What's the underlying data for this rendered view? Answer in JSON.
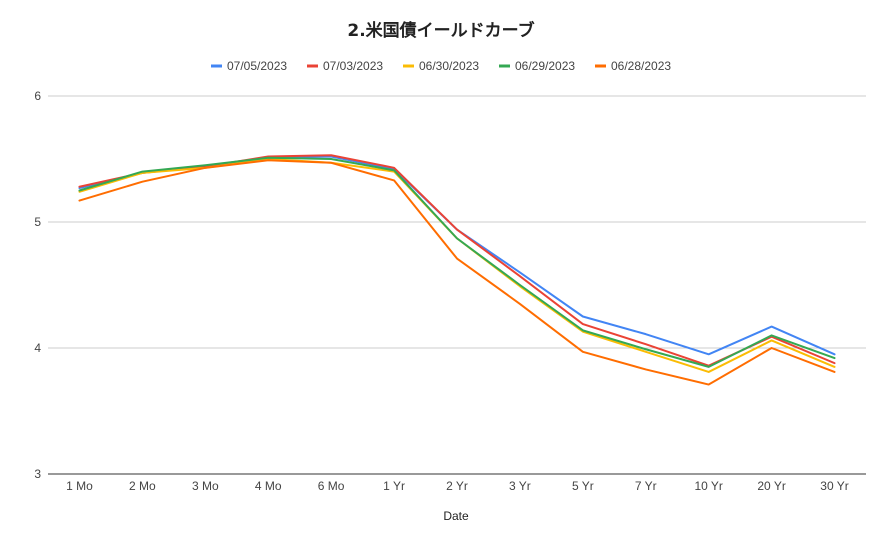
{
  "chart_data": {
    "type": "line",
    "title": "2.米国債イールドカーブ",
    "xlabel": "Date",
    "ylabel": "",
    "ylim": [
      3,
      6
    ],
    "yticks": [
      3,
      4,
      5,
      6
    ],
    "legend_position": "top",
    "grid": true,
    "categories": [
      "1 Mo",
      "2 Mo",
      "3 Mo",
      "4 Mo",
      "6 Mo",
      "1 Yr",
      "2 Yr",
      "3 Yr",
      "5 Yr",
      "7 Yr",
      "10 Yr",
      "20 Yr",
      "30 Yr"
    ],
    "series": [
      {
        "name": "07/05/2023",
        "color": "#4285f4",
        "values": [
          5.27,
          5.39,
          5.44,
          5.51,
          5.52,
          5.42,
          4.94,
          4.6,
          4.25,
          4.11,
          3.95,
          4.17,
          3.95
        ]
      },
      {
        "name": "07/03/2023",
        "color": "#ea4335",
        "values": [
          5.28,
          5.39,
          5.44,
          5.52,
          5.53,
          5.43,
          4.94,
          4.57,
          4.19,
          4.03,
          3.86,
          4.09,
          3.88
        ]
      },
      {
        "name": "06/30/2023",
        "color": "#fbbc04",
        "values": [
          5.24,
          5.39,
          5.43,
          5.5,
          5.47,
          5.4,
          4.87,
          4.49,
          4.13,
          3.97,
          3.81,
          4.06,
          3.85
        ]
      },
      {
        "name": "06/29/2023",
        "color": "#34a853",
        "values": [
          5.25,
          5.4,
          5.45,
          5.51,
          5.5,
          5.41,
          4.87,
          4.5,
          4.14,
          3.99,
          3.85,
          4.1,
          3.92
        ]
      },
      {
        "name": "06/28/2023",
        "color": "#ff6d01",
        "values": [
          5.17,
          5.32,
          5.43,
          5.49,
          5.47,
          5.33,
          4.71,
          4.35,
          3.97,
          3.83,
          3.71,
          4.0,
          3.81
        ]
      }
    ]
  }
}
